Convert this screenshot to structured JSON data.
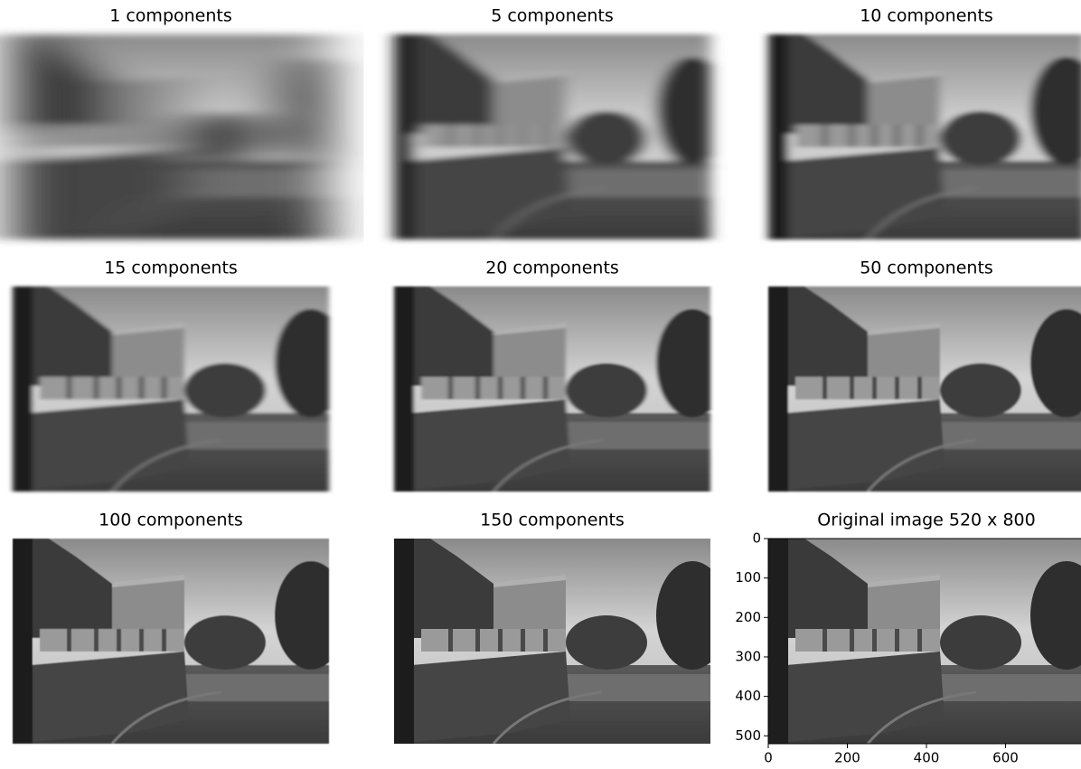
{
  "panels": [
    {
      "title": "1 components"
    },
    {
      "title": "5 components"
    },
    {
      "title": "10 components"
    },
    {
      "title": "15 components"
    },
    {
      "title": "20 components"
    },
    {
      "title": "50 components"
    },
    {
      "title": "100 components"
    },
    {
      "title": "150 components"
    },
    {
      "title": "Original image 520 x 800"
    }
  ],
  "original_axes": {
    "xlim": [
      0,
      800
    ],
    "ylim": [
      520,
      0
    ],
    "xticks": [
      0,
      200,
      400,
      600
    ],
    "yticks": [
      0,
      100,
      200,
      300,
      400,
      500
    ]
  }
}
